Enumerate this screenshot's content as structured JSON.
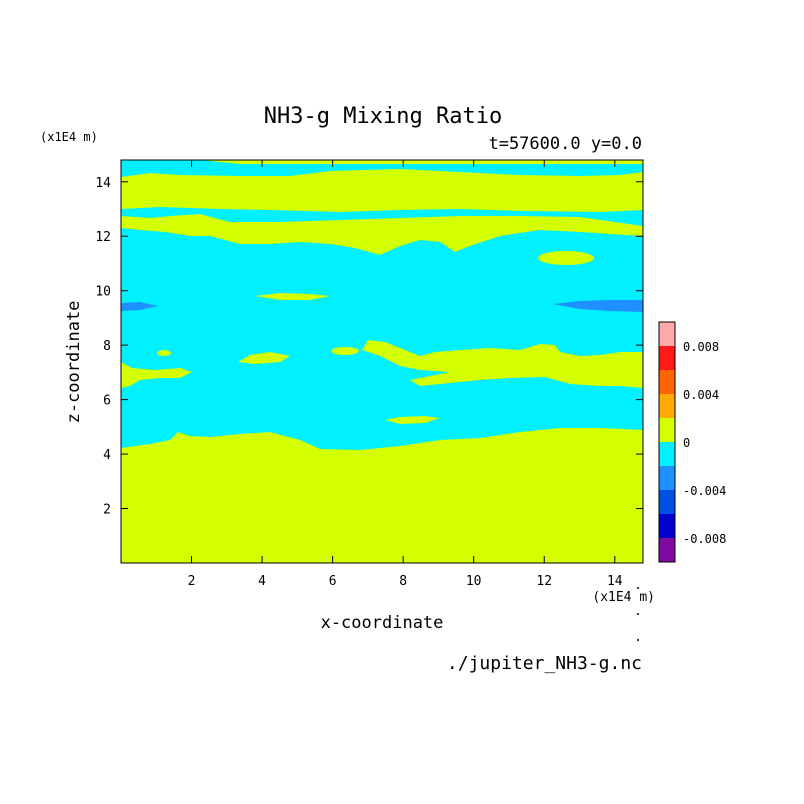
{
  "chart_data": {
    "type": "heatmap",
    "title": "NH3-g Mixing Ratio",
    "subtitle": "t=57600.0 y=0.0",
    "xlabel": "x-coordinate",
    "ylabel": "z-coordinate",
    "x_unit": "(x1E4 m)",
    "y_unit": "(x1E4 m)",
    "source": "./jupiter_NH3-g.nc",
    "xlim": [
      0,
      14.8
    ],
    "ylim": [
      0,
      14.8
    ],
    "x_ticks": [
      2,
      4,
      6,
      8,
      10,
      12,
      14
    ],
    "y_ticks": [
      2,
      4,
      6,
      8,
      10,
      12,
      14
    ],
    "x_tick_labels": [
      "2",
      "4",
      "6",
      "8",
      "10",
      "12",
      "14"
    ],
    "y_tick_labels": [
      "2",
      "4",
      "6",
      "8",
      "10",
      "12",
      "14"
    ],
    "colorbar": {
      "levels": [
        -0.01,
        -0.008,
        -0.006,
        -0.004,
        -0.002,
        0,
        0.002,
        0.004,
        0.006,
        0.008,
        0.01
      ],
      "colors": [
        "#7f0aa0",
        "#0000cc",
        "#0050e6",
        "#1e90ff",
        "#00f0ff",
        "#d4ff00",
        "#ffaa00",
        "#ff6600",
        "#ff1a1a",
        "#ffaaaa"
      ],
      "tick_values": [
        -0.008,
        -0.004,
        0,
        0.004,
        0.008
      ],
      "tick_labels": [
        "-0.008",
        "-0.004",
        "0",
        "0.004",
        "0.008"
      ]
    },
    "regions": {
      "zero_band": "#d4ff00",
      "negative_small": "#00f0ff",
      "negative_medium": "#1e90ff"
    }
  }
}
